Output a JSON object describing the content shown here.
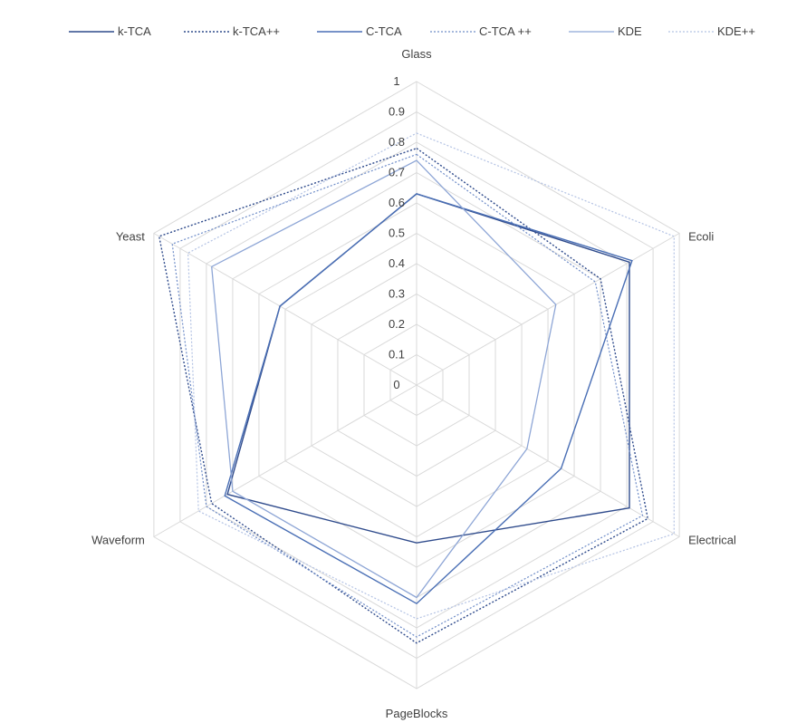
{
  "chart_data": {
    "type": "radar",
    "categories": [
      "Glass",
      "Ecoli",
      "Electrical",
      "PageBlocks",
      "Waveform",
      "Yeast"
    ],
    "axis_ticks": [
      "0",
      "0.1",
      "0.2",
      "0.3",
      "0.4",
      "0.5",
      "0.6",
      "0.7",
      "0.8",
      "0.9",
      "1"
    ],
    "rmin": 0,
    "rmax": 1,
    "grid": true,
    "legend_position": "top",
    "series": [
      {
        "name": "k-TCA",
        "values": [
          0.63,
          0.81,
          0.81,
          0.52,
          0.72,
          0.52
        ],
        "color": "#2f4b8c",
        "dash": "solid",
        "width": 1.4
      },
      {
        "name": "k-TCA++",
        "values": [
          0.78,
          0.7,
          0.88,
          0.85,
          0.78,
          0.98
        ],
        "color": "#2f4b8c",
        "dash": "dotted",
        "width": 1.4
      },
      {
        "name": "C-TCA",
        "values": [
          0.63,
          0.82,
          0.55,
          0.72,
          0.73,
          0.52
        ],
        "color": "#4a6fb5",
        "dash": "solid",
        "width": 1.4
      },
      {
        "name": "C-TCA ++",
        "values": [
          0.76,
          0.68,
          0.86,
          0.83,
          0.8,
          0.93
        ],
        "color": "#6f8dc8",
        "dash": "dotted",
        "width": 1.2
      },
      {
        "name": "KDE",
        "values": [
          0.74,
          0.53,
          0.42,
          0.7,
          0.7,
          0.78
        ],
        "color": "#8ea6d6",
        "dash": "solid",
        "width": 1.3
      },
      {
        "name": "KDE++",
        "values": [
          0.83,
          0.98,
          0.98,
          0.77,
          0.83,
          0.87
        ],
        "color": "#b4c3e4",
        "dash": "dotted",
        "width": 1.2
      }
    ]
  }
}
